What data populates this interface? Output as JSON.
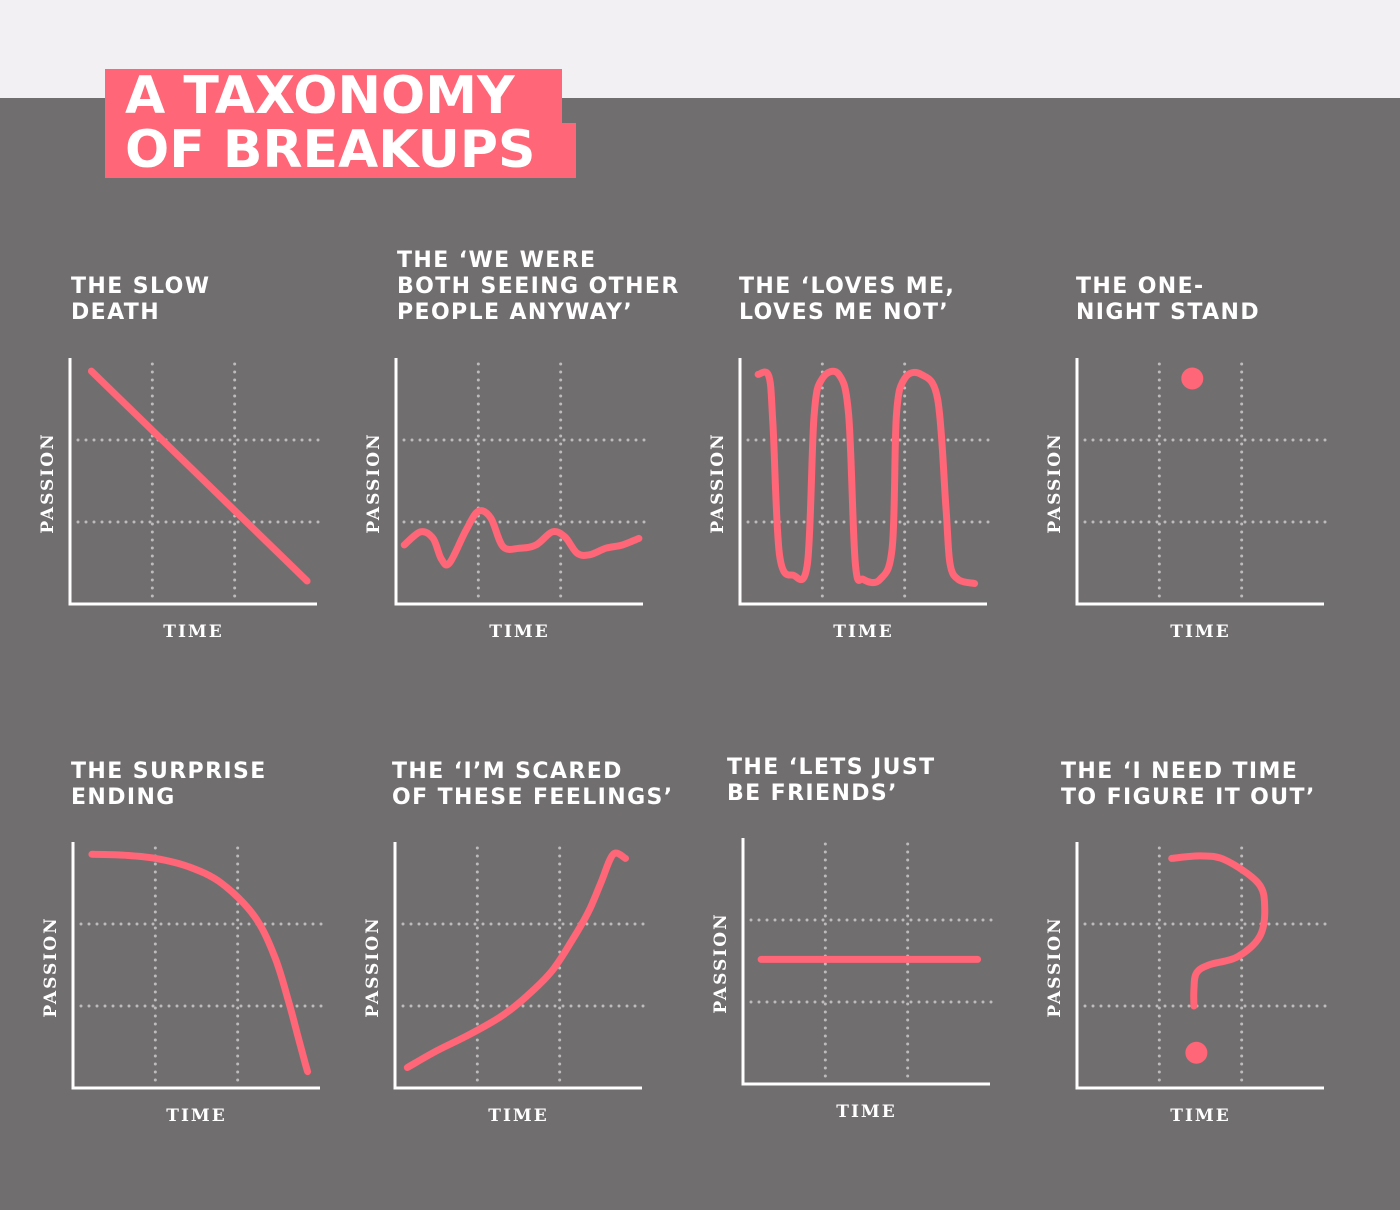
{
  "header": {
    "title_lines": [
      "A TAXONOMY",
      "OF BREAKUPS"
    ]
  },
  "colors": {
    "background": "#716e6f",
    "top_band": "#f2f0f2",
    "accent": "#ff6677",
    "grid": "#bdbbbc",
    "text": "#ffffff"
  },
  "chart_data": [
    {
      "type": "line",
      "title": "THE SLOW\nDEATH",
      "xlabel": "TIME",
      "ylabel": "PASSION",
      "xlim": [
        0,
        3
      ],
      "ylim": [
        0,
        3
      ],
      "grid": true,
      "series": [
        {
          "x": [
            0.26,
            2.88
          ],
          "y": [
            2.84,
            0.28
          ]
        }
      ]
    },
    {
      "type": "line",
      "title": "THE ‘WE WERE\nBOTH SEEING OTHER\nPEOPLE ANYWAY’",
      "xlabel": "TIME",
      "ylabel": "PASSION",
      "xlim": [
        0,
        3
      ],
      "ylim": [
        0,
        3
      ],
      "grid": true,
      "series": [
        {
          "x": [
            0.1,
            0.3,
            0.45,
            0.55,
            0.65,
            0.85,
            1.0,
            1.15,
            1.3,
            1.5,
            1.7,
            1.9,
            2.05,
            2.2,
            2.35,
            2.55,
            2.75,
            2.95
          ],
          "y": [
            0.72,
            0.88,
            0.8,
            0.55,
            0.5,
            0.9,
            1.13,
            1.05,
            0.7,
            0.68,
            0.72,
            0.88,
            0.82,
            0.62,
            0.6,
            0.68,
            0.72,
            0.8
          ]
        }
      ]
    },
    {
      "type": "line",
      "title": "THE ‘LOVES ME,\nLOVES ME NOT’",
      "xlabel": "TIME",
      "ylabel": "PASSION",
      "xlim": [
        0,
        3
      ],
      "ylim": [
        0,
        3
      ],
      "grid": true,
      "series": [
        {
          "x": [
            0.22,
            0.35,
            0.4,
            0.48,
            0.65,
            0.82,
            0.9,
            1.0,
            1.2,
            1.32,
            1.4,
            1.5,
            1.7,
            1.85,
            1.9,
            2.0,
            2.2,
            2.4,
            2.5,
            2.55,
            2.65,
            2.85
          ],
          "y": [
            2.8,
            2.78,
            2.2,
            0.6,
            0.35,
            0.5,
            2.3,
            2.75,
            2.8,
            2.3,
            0.5,
            0.3,
            0.3,
            0.7,
            2.3,
            2.75,
            2.8,
            2.5,
            1.2,
            0.5,
            0.3,
            0.25
          ]
        }
      ]
    },
    {
      "type": "scatter",
      "title": "THE ONE-\nNIGHT STAND",
      "xlabel": "TIME",
      "ylabel": "PASSION",
      "xlim": [
        0,
        3
      ],
      "ylim": [
        0,
        3
      ],
      "grid": true,
      "series": [
        {
          "x": [
            1.4
          ],
          "y": [
            2.75
          ]
        }
      ]
    },
    {
      "type": "line",
      "title": "THE SURPRISE\nENDING",
      "xlabel": "TIME",
      "ylabel": "PASSION",
      "xlim": [
        0,
        3
      ],
      "ylim": [
        0,
        3
      ],
      "grid": true,
      "series": [
        {
          "x": [
            0.23,
            0.6,
            1.0,
            1.4,
            1.8,
            2.2,
            2.45,
            2.62,
            2.74,
            2.82,
            2.85
          ],
          "y": [
            2.85,
            2.84,
            2.8,
            2.7,
            2.5,
            2.1,
            1.6,
            1.05,
            0.6,
            0.3,
            0.2
          ]
        }
      ]
    },
    {
      "type": "line",
      "title": "THE ‘I’M SCARED\nOF THESE FEELINGS’",
      "xlabel": "TIME",
      "ylabel": "PASSION",
      "xlim": [
        0,
        3
      ],
      "ylim": [
        0,
        3
      ],
      "grid": true,
      "series": [
        {
          "x": [
            0.15,
            0.5,
            0.9,
            1.3,
            1.6,
            1.9,
            2.15,
            2.35,
            2.5,
            2.65,
            2.8
          ],
          "y": [
            0.25,
            0.45,
            0.65,
            0.88,
            1.12,
            1.42,
            1.8,
            2.15,
            2.5,
            2.85,
            2.8
          ]
        }
      ]
    },
    {
      "type": "line",
      "title": "THE ‘LETS JUST\nBE FRIENDS’",
      "xlabel": "TIME",
      "ylabel": "PASSION",
      "xlim": [
        0,
        3
      ],
      "ylim": [
        0,
        3
      ],
      "grid": true,
      "series": [
        {
          "x": [
            0.22,
            2.85
          ],
          "y": [
            1.52,
            1.52
          ]
        }
      ]
    },
    {
      "type": "line",
      "title": "THE ‘I NEED TIME\nTO FIGURE IT OUT’",
      "xlabel": "TIME",
      "ylabel": "PASSION",
      "xlim": [
        0,
        3
      ],
      "ylim": [
        0,
        3
      ],
      "grid": true,
      "series": [
        {
          "x": [
            1.15,
            1.5,
            1.8,
            2.2,
            2.28,
            2.22,
            1.95,
            1.6,
            1.45,
            1.42,
            1.42
          ],
          "y": [
            2.8,
            2.83,
            2.78,
            2.5,
            2.2,
            1.85,
            1.6,
            1.5,
            1.4,
            1.2,
            1.0
          ]
        },
        {
          "x": [
            1.45
          ],
          "y": [
            0.43
          ]
        }
      ]
    }
  ]
}
